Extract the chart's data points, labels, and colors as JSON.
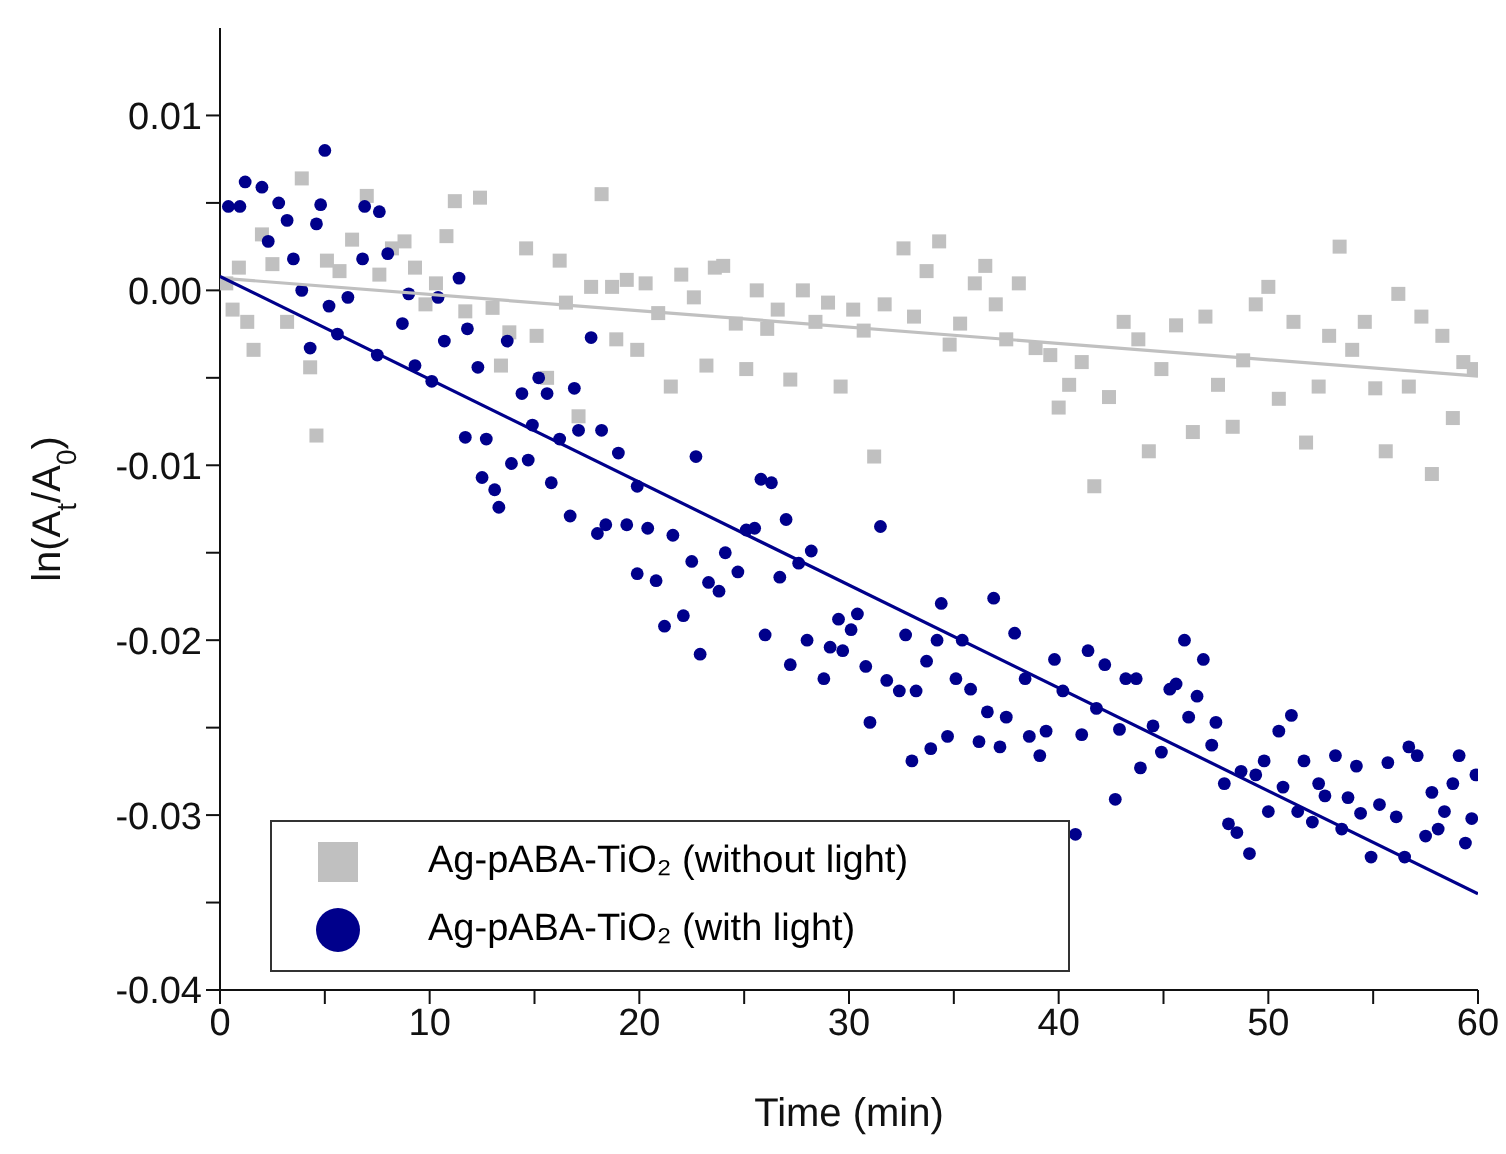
{
  "chart_data": {
    "type": "scatter",
    "xlabel": "Time (min)",
    "ylabel": "ln(A$_{t}$/A$_{0}$)",
    "xlim": [
      0,
      60
    ],
    "xticks": [
      0,
      {
        "value": 5,
        "label": null
      },
      10,
      {
        "value": 15,
        "label": null
      },
      20,
      {
        "value": 25,
        "label": null
      },
      30,
      {
        "value": 35,
        "label": null
      },
      40,
      {
        "value": 45,
        "label": null
      },
      50,
      {
        "value": 55,
        "label": null
      },
      60
    ],
    "ylim": [
      -0.04,
      0.015
    ],
    "yticks": [
      {
        "value": -0.04,
        "label": "-0.04"
      },
      {
        "value": -0.035,
        "label": null
      },
      {
        "value": -0.03,
        "label": "-0.03"
      },
      {
        "value": -0.025,
        "label": null
      },
      {
        "value": -0.02,
        "label": "-0.02"
      },
      {
        "value": -0.015,
        "label": null
      },
      {
        "value": -0.01,
        "label": "-0.01"
      },
      {
        "value": -0.005,
        "label": null
      },
      {
        "value": 0,
        "label": "0.00"
      },
      {
        "value": 0.005,
        "label": null
      },
      {
        "value": 0.01,
        "label": "0.01"
      }
    ],
    "legend": "bottom left",
    "series": [
      {
        "name": "Ag-pABA-TiO₂ (without light)",
        "color": "#c0c0c0",
        "marker": "square",
        "x": [
          0.3,
          0.6,
          0.9,
          1.3,
          1.6,
          2.0,
          2.5,
          3.2,
          3.9,
          4.3,
          4.6,
          5.1,
          5.7,
          6.3,
          7.0,
          7.6,
          8.2,
          8.8,
          9.3,
          9.8,
          10.3,
          10.8,
          11.2,
          11.7,
          12.4,
          13.0,
          13.4,
          13.8,
          14.6,
          15.1,
          15.6,
          16.2,
          16.5,
          17.1,
          17.7,
          18.2,
          18.7,
          18.9,
          19.4,
          19.9,
          20.3,
          20.9,
          21.5,
          22.0,
          22.6,
          23.2,
          23.6,
          24.0,
          24.6,
          25.1,
          25.6,
          26.1,
          26.6,
          27.2,
          27.8,
          28.4,
          29.0,
          29.6,
          30.2,
          30.7,
          31.2,
          31.7,
          32.6,
          33.1,
          33.7,
          34.3,
          34.8,
          35.3,
          36.0,
          36.5,
          37.0,
          37.5,
          38.1,
          38.9,
          39.6,
          40.0,
          40.5,
          41.1,
          41.7,
          42.4,
          43.1,
          43.8,
          44.3,
          44.9,
          45.6,
          46.4,
          47.0,
          47.6,
          48.3,
          48.8,
          49.4,
          50.0,
          50.5,
          51.2,
          51.8,
          52.4,
          52.9,
          53.4,
          54.0,
          54.6,
          55.1,
          55.6,
          56.2,
          56.7,
          57.3,
          57.8,
          58.3,
          58.8,
          59.3,
          59.8
        ],
        "values": [
          0.0004,
          -0.0011,
          0.0013,
          -0.0018,
          -0.0034,
          0.0032,
          0.0015,
          -0.0018,
          0.0064,
          -0.0044,
          -0.0083,
          0.0017,
          0.0011,
          0.0029,
          0.0054,
          0.0009,
          0.0024,
          0.0028,
          0.0013,
          -0.0008,
          0.0004,
          0.0031,
          0.0051,
          -0.0012,
          0.0053,
          -0.001,
          -0.0043,
          -0.0024,
          0.0024,
          -0.0026,
          -0.005,
          0.0017,
          -0.0007,
          -0.0072,
          0.0002,
          0.0055,
          0.0002,
          -0.0028,
          0.0006,
          -0.0034,
          0.0004,
          -0.0013,
          -0.0055,
          0.0009,
          -0.0004,
          -0.0043,
          0.0013,
          0.0014,
          -0.0019,
          -0.0045,
          0.0,
          -0.0022,
          -0.0011,
          -0.0051,
          0.0,
          -0.0018,
          -0.0007,
          -0.0055,
          -0.0011,
          -0.0023,
          -0.0095,
          -0.0008,
          0.0024,
          -0.0015,
          0.0011,
          0.0028,
          -0.0031,
          -0.0019,
          0.0004,
          0.0014,
          -0.0008,
          -0.0028,
          0.0004,
          -0.0033,
          -0.0037,
          -0.0067,
          -0.0054,
          -0.0041,
          -0.0112,
          -0.0061,
          -0.0018,
          -0.0028,
          -0.0092,
          -0.0045,
          -0.002,
          -0.0081,
          -0.0015,
          -0.0054,
          -0.0078,
          -0.004,
          -0.0008,
          0.0002,
          -0.0062,
          -0.0018,
          -0.0087,
          -0.0055,
          -0.0026,
          0.0025,
          -0.0034,
          -0.0018,
          -0.0056,
          -0.0092,
          -0.0002,
          -0.0055,
          -0.0015,
          -0.0105,
          -0.0026,
          -0.0073,
          -0.0041,
          -0.0045
        ]
      },
      {
        "name": "Ag-pABA-TiO₂ (with light)",
        "color": "#00008b",
        "marker": "circle",
        "x": [
          0.4,
          0.95,
          1.2,
          2.0,
          2.3,
          2.8,
          3.2,
          3.5,
          3.9,
          4.3,
          4.6,
          4.8,
          5.0,
          5.2,
          5.6,
          6.1,
          6.9,
          6.8,
          7.6,
          7.5,
          8.0,
          8.7,
          9.0,
          9.3,
          10.1,
          10.4,
          10.7,
          11.4,
          11.8,
          12.3,
          11.7,
          12.7,
          12.5,
          13.1,
          13.3,
          13.7,
          13.9,
          14.4,
          14.7,
          14.9,
          15.2,
          15.6,
          15.8,
          16.2,
          16.7,
          16.9,
          17.1,
          17.7,
          18.0,
          18.2,
          18.4,
          19.0,
          19.4,
          19.9,
          19.9,
          20.4,
          20.8,
          21.2,
          21.6,
          22.1,
          22.5,
          22.7,
          22.9,
          23.3,
          23.8,
          24.1,
          24.7,
          25.1,
          25.5,
          25.8,
          26.0,
          26.3,
          26.7,
          27.0,
          27.2,
          27.6,
          28.0,
          28.2,
          28.8,
          29.1,
          29.5,
          29.7,
          30.1,
          30.4,
          30.8,
          31.0,
          31.5,
          31.8,
          32.4,
          32.7,
          33.0,
          33.2,
          33.7,
          33.9,
          34.2,
          34.4,
          34.7,
          35.1,
          35.4,
          35.8,
          36.2,
          36.6,
          36.9,
          37.2,
          37.5,
          37.9,
          38.4,
          38.6,
          39.1,
          39.4,
          39.8,
          40.2,
          40.8,
          41.1,
          41.4,
          41.8,
          42.2,
          42.7,
          42.9,
          43.2,
          43.7,
          43.9,
          44.5,
          44.9,
          45.3,
          45.6,
          46.0,
          46.2,
          46.6,
          46.9,
          47.3,
          47.5,
          47.9,
          48.1,
          48.5,
          48.7,
          49.1,
          49.4,
          49.8,
          50.0,
          50.5,
          50.7,
          51.1,
          51.4,
          51.7,
          52.1,
          52.4,
          52.7,
          53.2,
          53.5,
          53.8,
          54.2,
          54.4,
          54.9,
          55.3,
          55.7,
          56.1,
          56.5,
          56.7,
          57.1,
          57.5,
          57.8,
          58.1,
          58.4,
          58.8,
          59.1,
          59.4,
          59.7,
          59.9
        ],
        "values": [
          0.0048,
          0.0048,
          0.0062,
          0.0059,
          0.0028,
          0.005,
          0.004,
          0.0018,
          0.0,
          -0.0033,
          0.0038,
          0.0049,
          0.008,
          -0.0009,
          -0.0025,
          -0.0004,
          0.0048,
          0.0018,
          0.0045,
          -0.0037,
          0.0021,
          -0.0019,
          -0.0002,
          -0.0043,
          -0.0052,
          -0.0004,
          -0.0029,
          0.0007,
          -0.0022,
          -0.0044,
          -0.0084,
          -0.0085,
          -0.0107,
          -0.0114,
          -0.0124,
          -0.0029,
          -0.0099,
          -0.0059,
          -0.0097,
          -0.0077,
          -0.005,
          -0.0059,
          -0.011,
          -0.0085,
          -0.0129,
          -0.0056,
          -0.008,
          -0.0027,
          -0.0139,
          -0.008,
          -0.0134,
          -0.0093,
          -0.0134,
          -0.0112,
          -0.0162,
          -0.0136,
          -0.0166,
          -0.0192,
          -0.014,
          -0.0186,
          -0.0155,
          -0.0095,
          -0.0208,
          -0.0167,
          -0.0172,
          -0.015,
          -0.0161,
          -0.0137,
          -0.0136,
          -0.0108,
          -0.0197,
          -0.011,
          -0.0164,
          -0.0131,
          -0.0214,
          -0.0156,
          -0.02,
          -0.0149,
          -0.0222,
          -0.0204,
          -0.0188,
          -0.0206,
          -0.0194,
          -0.0185,
          -0.0215,
          -0.0247,
          -0.0135,
          -0.0223,
          -0.0229,
          -0.0197,
          -0.0269,
          -0.0229,
          -0.0212,
          -0.0262,
          -0.02,
          -0.0179,
          -0.0255,
          -0.0222,
          -0.02,
          -0.0228,
          -0.0258,
          -0.0241,
          -0.0176,
          -0.0261,
          -0.0244,
          -0.0196,
          -0.0222,
          -0.0255,
          -0.0266,
          -0.0252,
          -0.0211,
          -0.0229,
          -0.0311,
          -0.0254,
          -0.0206,
          -0.0239,
          -0.0214,
          -0.0291,
          -0.0251,
          -0.0222,
          -0.0222,
          -0.0273,
          -0.0249,
          -0.0264,
          -0.0228,
          -0.0225,
          -0.02,
          -0.0244,
          -0.0232,
          -0.0211,
          -0.026,
          -0.0247,
          -0.0282,
          -0.0305,
          -0.031,
          -0.0275,
          -0.0322,
          -0.0277,
          -0.0269,
          -0.0298,
          -0.0252,
          -0.0284,
          -0.0243,
          -0.0298,
          -0.0269,
          -0.0304,
          -0.0282,
          -0.0289,
          -0.0266,
          -0.0308,
          -0.029,
          -0.0272,
          -0.0299,
          -0.0324,
          -0.0294,
          -0.027,
          -0.0301,
          -0.0324,
          -0.0261,
          -0.0266,
          -0.0312,
          -0.0287,
          -0.0308,
          -0.0298,
          -0.0282,
          -0.0266,
          -0.0316,
          -0.0302,
          -0.0277
        ]
      },
      {
        "type": "line",
        "color": "#c0c0c0",
        "marker": "none",
        "line_style": "solid",
        "x": [
          0,
          60
        ],
        "values": [
          0.0007,
          -0.0049
        ]
      },
      {
        "type": "line",
        "color": "#00008b",
        "marker": "none",
        "line_style": "solid",
        "x": [
          0,
          60
        ],
        "values": [
          0.0008,
          -0.0345
        ]
      }
    ]
  }
}
